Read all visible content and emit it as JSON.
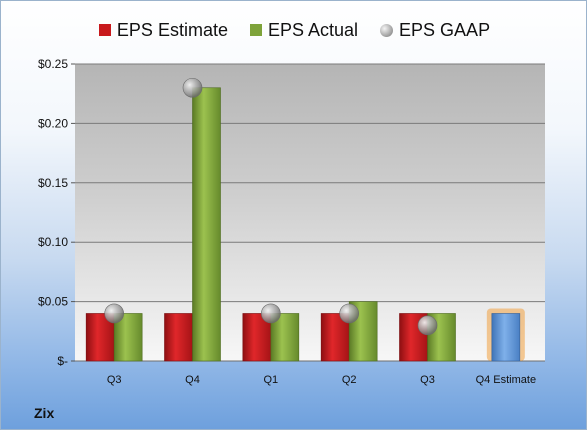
{
  "legend": {
    "items": [
      {
        "label": "EPS Estimate",
        "shape": "square",
        "color": "#c8191c"
      },
      {
        "label": "EPS Actual",
        "shape": "square",
        "color": "#7ea33a"
      },
      {
        "label": "EPS GAAP",
        "shape": "circle",
        "color": "#a0a0a0"
      }
    ]
  },
  "company": "Zix",
  "colors": {
    "estimate": "#c8191c",
    "actual": "#7ea33a",
    "gaap": "#a0a0a0",
    "future_estimate": "#5b94d6",
    "future_estimate_glow": "#f0a040"
  },
  "chart_data": {
    "type": "bar",
    "categories": [
      "Q3",
      "Q4",
      "Q1",
      "Q2",
      "Q3",
      "Q4 Estimate"
    ],
    "y_tick_labels": [
      "$-",
      "$0.05",
      "$0.10",
      "$0.15",
      "$0.20",
      "$0.25"
    ],
    "ylim": [
      0,
      0.25
    ],
    "grid": true,
    "legend_position": "top",
    "series": [
      {
        "name": "EPS Estimate",
        "type": "bar",
        "values": [
          0.04,
          0.04,
          0.04,
          0.04,
          0.04,
          null
        ]
      },
      {
        "name": "EPS Actual",
        "type": "bar",
        "values": [
          0.04,
          0.23,
          0.04,
          0.05,
          0.04,
          null
        ]
      },
      {
        "name": "EPS GAAP",
        "type": "scatter",
        "values": [
          0.04,
          0.23,
          0.04,
          0.04,
          0.03,
          null
        ]
      },
      {
        "name": "Q4 Estimate",
        "type": "bar",
        "values": [
          null,
          null,
          null,
          null,
          null,
          0.04
        ]
      }
    ]
  }
}
